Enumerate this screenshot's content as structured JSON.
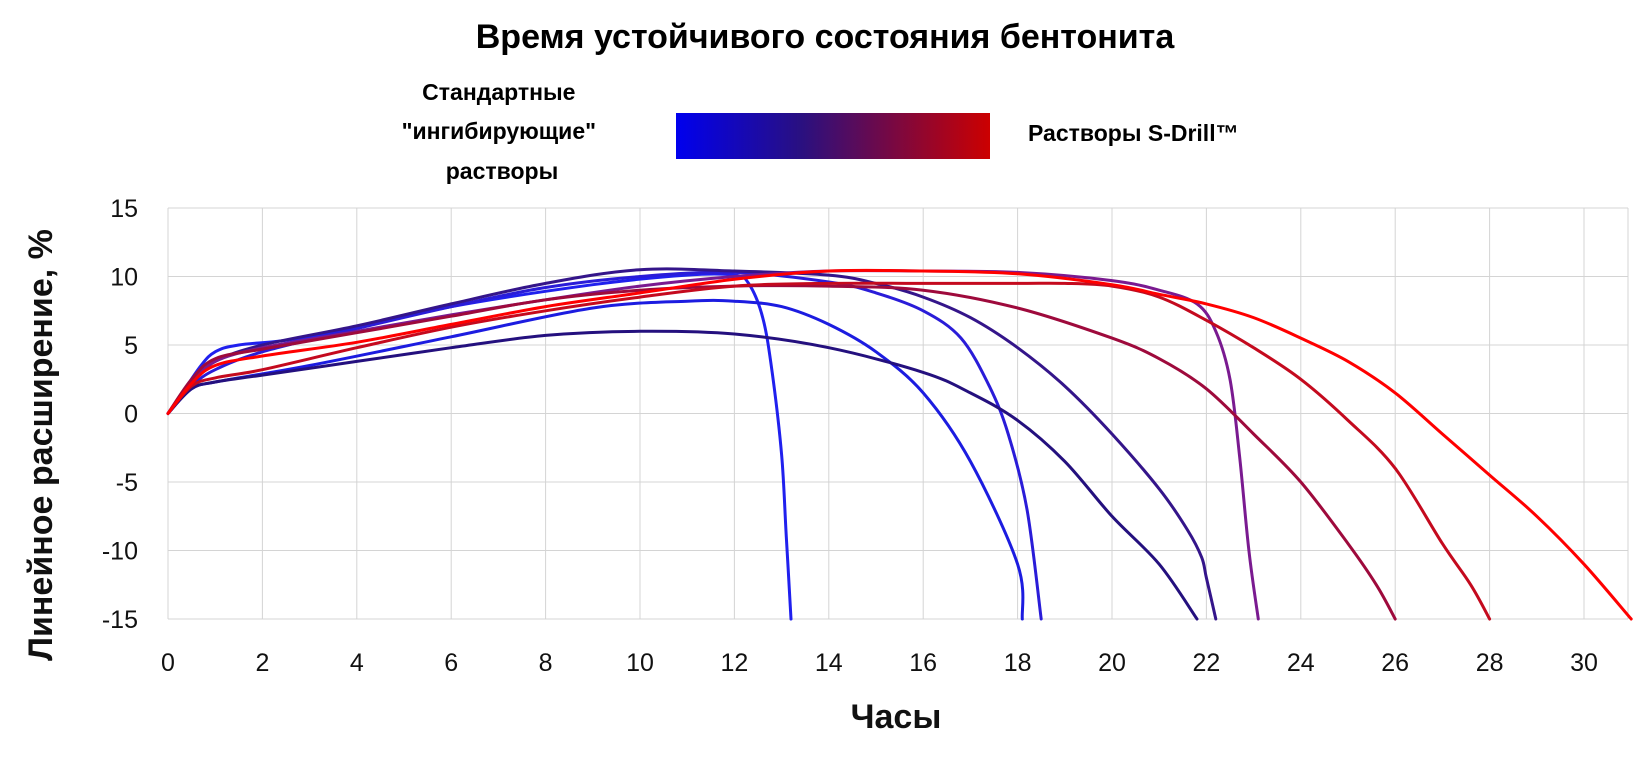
{
  "chart_data": {
    "type": "line",
    "title": "Время устойчивого состояния бентонита",
    "xlabel": "Часы",
    "ylabel": "Линейное расширение, %",
    "xlim": [
      0,
      31.5
    ],
    "ylim": [
      -15,
      15
    ],
    "x_ticks": [
      "0",
      "2",
      "4",
      "6",
      "8",
      "10",
      "12",
      "14",
      "16",
      "18",
      "20",
      "22",
      "24",
      "26",
      "28",
      "30"
    ],
    "y_ticks": [
      "15",
      "10",
      "5",
      "0",
      "-5",
      "-10",
      "-15"
    ],
    "grid": true,
    "legend": {
      "left_label": [
        "Стандартные",
        "\"ингибирующие\"",
        "растворы"
      ],
      "right_label": "Растворы S-Drill™",
      "gradient_colors": [
        "#0000ee",
        "#2a1080",
        "#cc0000"
      ]
    },
    "series": [
      {
        "color": "#2020ee",
        "points": [
          [
            0,
            0
          ],
          [
            0.3,
            1.5
          ],
          [
            0.7,
            3.5
          ],
          [
            1,
            4.5
          ],
          [
            1.5,
            5
          ],
          [
            3,
            5.6
          ],
          [
            6,
            7.8
          ],
          [
            9,
            9.4
          ],
          [
            11,
            10.1
          ],
          [
            12,
            10.1
          ],
          [
            12.3,
            9.5
          ],
          [
            12.6,
            7
          ],
          [
            12.8,
            3
          ],
          [
            13,
            -3
          ],
          [
            13.1,
            -9
          ],
          [
            13.2,
            -15
          ]
        ]
      },
      {
        "color": "#1c1ce0",
        "points": [
          [
            0,
            0
          ],
          [
            0.5,
            1.8
          ],
          [
            1,
            2.3
          ],
          [
            3,
            3.5
          ],
          [
            6,
            5.6
          ],
          [
            9,
            7.7
          ],
          [
            11,
            8.2
          ],
          [
            12,
            8.2
          ],
          [
            13,
            7.8
          ],
          [
            14,
            6.5
          ],
          [
            15,
            4.5
          ],
          [
            16,
            1.5
          ],
          [
            17,
            -3.5
          ],
          [
            18,
            -11
          ],
          [
            18.1,
            -15
          ]
        ]
      },
      {
        "color": "#2a1cd8",
        "points": [
          [
            0,
            0
          ],
          [
            0.5,
            2
          ],
          [
            1,
            3.2
          ],
          [
            2,
            4.5
          ],
          [
            4,
            6.2
          ],
          [
            6,
            7.8
          ],
          [
            8,
            9.2
          ],
          [
            10,
            10
          ],
          [
            12,
            10.3
          ],
          [
            14,
            9.6
          ],
          [
            15,
            8.8
          ],
          [
            16,
            7.5
          ],
          [
            16.8,
            5.5
          ],
          [
            17.4,
            2
          ],
          [
            17.8,
            -1.5
          ],
          [
            18.2,
            -7
          ],
          [
            18.5,
            -15
          ]
        ]
      },
      {
        "color": "#24107e",
        "points": [
          [
            0,
            0
          ],
          [
            0.5,
            1.8
          ],
          [
            1,
            2.3
          ],
          [
            2,
            2.8
          ],
          [
            4,
            3.8
          ],
          [
            6,
            4.8
          ],
          [
            8,
            5.7
          ],
          [
            10,
            6
          ],
          [
            12,
            5.8
          ],
          [
            14,
            4.8
          ],
          [
            16,
            3
          ],
          [
            17,
            1.5
          ],
          [
            18,
            -0.5
          ],
          [
            19,
            -3.5
          ],
          [
            20,
            -7.5
          ],
          [
            21,
            -11
          ],
          [
            21.8,
            -15
          ]
        ]
      },
      {
        "color": "#34158a",
        "points": [
          [
            0,
            0
          ],
          [
            0.5,
            2.2
          ],
          [
            1,
            3.8
          ],
          [
            2,
            5
          ],
          [
            4,
            6.4
          ],
          [
            6,
            8
          ],
          [
            8,
            9.5
          ],
          [
            10,
            10.5
          ],
          [
            12,
            10.4
          ],
          [
            14,
            10.1
          ],
          [
            15,
            9.5
          ],
          [
            16,
            8.5
          ],
          [
            17,
            7
          ],
          [
            18,
            4.8
          ],
          [
            19,
            2
          ],
          [
            20,
            -1.5
          ],
          [
            21,
            -5.5
          ],
          [
            21.6,
            -8.5
          ],
          [
            21.9,
            -10.5
          ],
          [
            22,
            -12
          ],
          [
            22.2,
            -15
          ]
        ]
      },
      {
        "color": "#7a1a90",
        "points": [
          [
            0,
            0
          ],
          [
            0.5,
            2.2
          ],
          [
            1,
            3.8
          ],
          [
            2,
            4.8
          ],
          [
            4,
            6
          ],
          [
            6,
            7.2
          ],
          [
            8,
            8.3
          ],
          [
            10,
            9.3
          ],
          [
            12,
            10
          ],
          [
            14,
            10.4
          ],
          [
            16,
            10.4
          ],
          [
            18,
            10.3
          ],
          [
            20,
            9.7
          ],
          [
            21,
            9
          ],
          [
            21.8,
            8
          ],
          [
            22.2,
            6
          ],
          [
            22.5,
            2.5
          ],
          [
            22.7,
            -3
          ],
          [
            22.9,
            -10
          ],
          [
            23.1,
            -15
          ]
        ]
      },
      {
        "color": "#9e0a3c",
        "points": [
          [
            0,
            0
          ],
          [
            0.5,
            2.5
          ],
          [
            1,
            4
          ],
          [
            2,
            4.7
          ],
          [
            4,
            5.9
          ],
          [
            6,
            7.1
          ],
          [
            8,
            8.3
          ],
          [
            10,
            9
          ],
          [
            12,
            9.3
          ],
          [
            14,
            9.3
          ],
          [
            16,
            9
          ],
          [
            18,
            7.7
          ],
          [
            20,
            5.5
          ],
          [
            21,
            4
          ],
          [
            22,
            1.8
          ],
          [
            23,
            -1.5
          ],
          [
            24,
            -5
          ],
          [
            25,
            -9.5
          ],
          [
            25.6,
            -12.5
          ],
          [
            26,
            -15
          ]
        ]
      },
      {
        "color": "#c40a1e",
        "points": [
          [
            0,
            0
          ],
          [
            0.5,
            2
          ],
          [
            1,
            2.6
          ],
          [
            2,
            3.2
          ],
          [
            4,
            4.8
          ],
          [
            6,
            6.3
          ],
          [
            8,
            7.5
          ],
          [
            10,
            8.5
          ],
          [
            12,
            9.3
          ],
          [
            14,
            9.5
          ],
          [
            16,
            9.5
          ],
          [
            18,
            9.5
          ],
          [
            19,
            9.5
          ],
          [
            20,
            9.3
          ],
          [
            21,
            8.5
          ],
          [
            22,
            6.8
          ],
          [
            23,
            4.8
          ],
          [
            24,
            2.5
          ],
          [
            25,
            -0.5
          ],
          [
            26,
            -4
          ],
          [
            27,
            -9.5
          ],
          [
            27.6,
            -12.5
          ],
          [
            28,
            -15
          ]
        ]
      },
      {
        "color": "#ff0000",
        "points": [
          [
            0,
            0
          ],
          [
            0.5,
            2.2
          ],
          [
            1,
            3.5
          ],
          [
            2,
            4.2
          ],
          [
            4,
            5.2
          ],
          [
            6,
            6.5
          ],
          [
            8,
            7.8
          ],
          [
            10,
            8.8
          ],
          [
            12,
            9.8
          ],
          [
            14,
            10.4
          ],
          [
            16,
            10.4
          ],
          [
            18,
            10.2
          ],
          [
            20,
            9.4
          ],
          [
            21,
            8.7
          ],
          [
            22,
            8
          ],
          [
            23,
            7
          ],
          [
            24,
            5.5
          ],
          [
            25,
            3.8
          ],
          [
            26,
            1.5
          ],
          [
            27,
            -1.5
          ],
          [
            28,
            -4.5
          ],
          [
            29,
            -7.5
          ],
          [
            30,
            -11
          ],
          [
            31,
            -15
          ]
        ]
      }
    ]
  }
}
